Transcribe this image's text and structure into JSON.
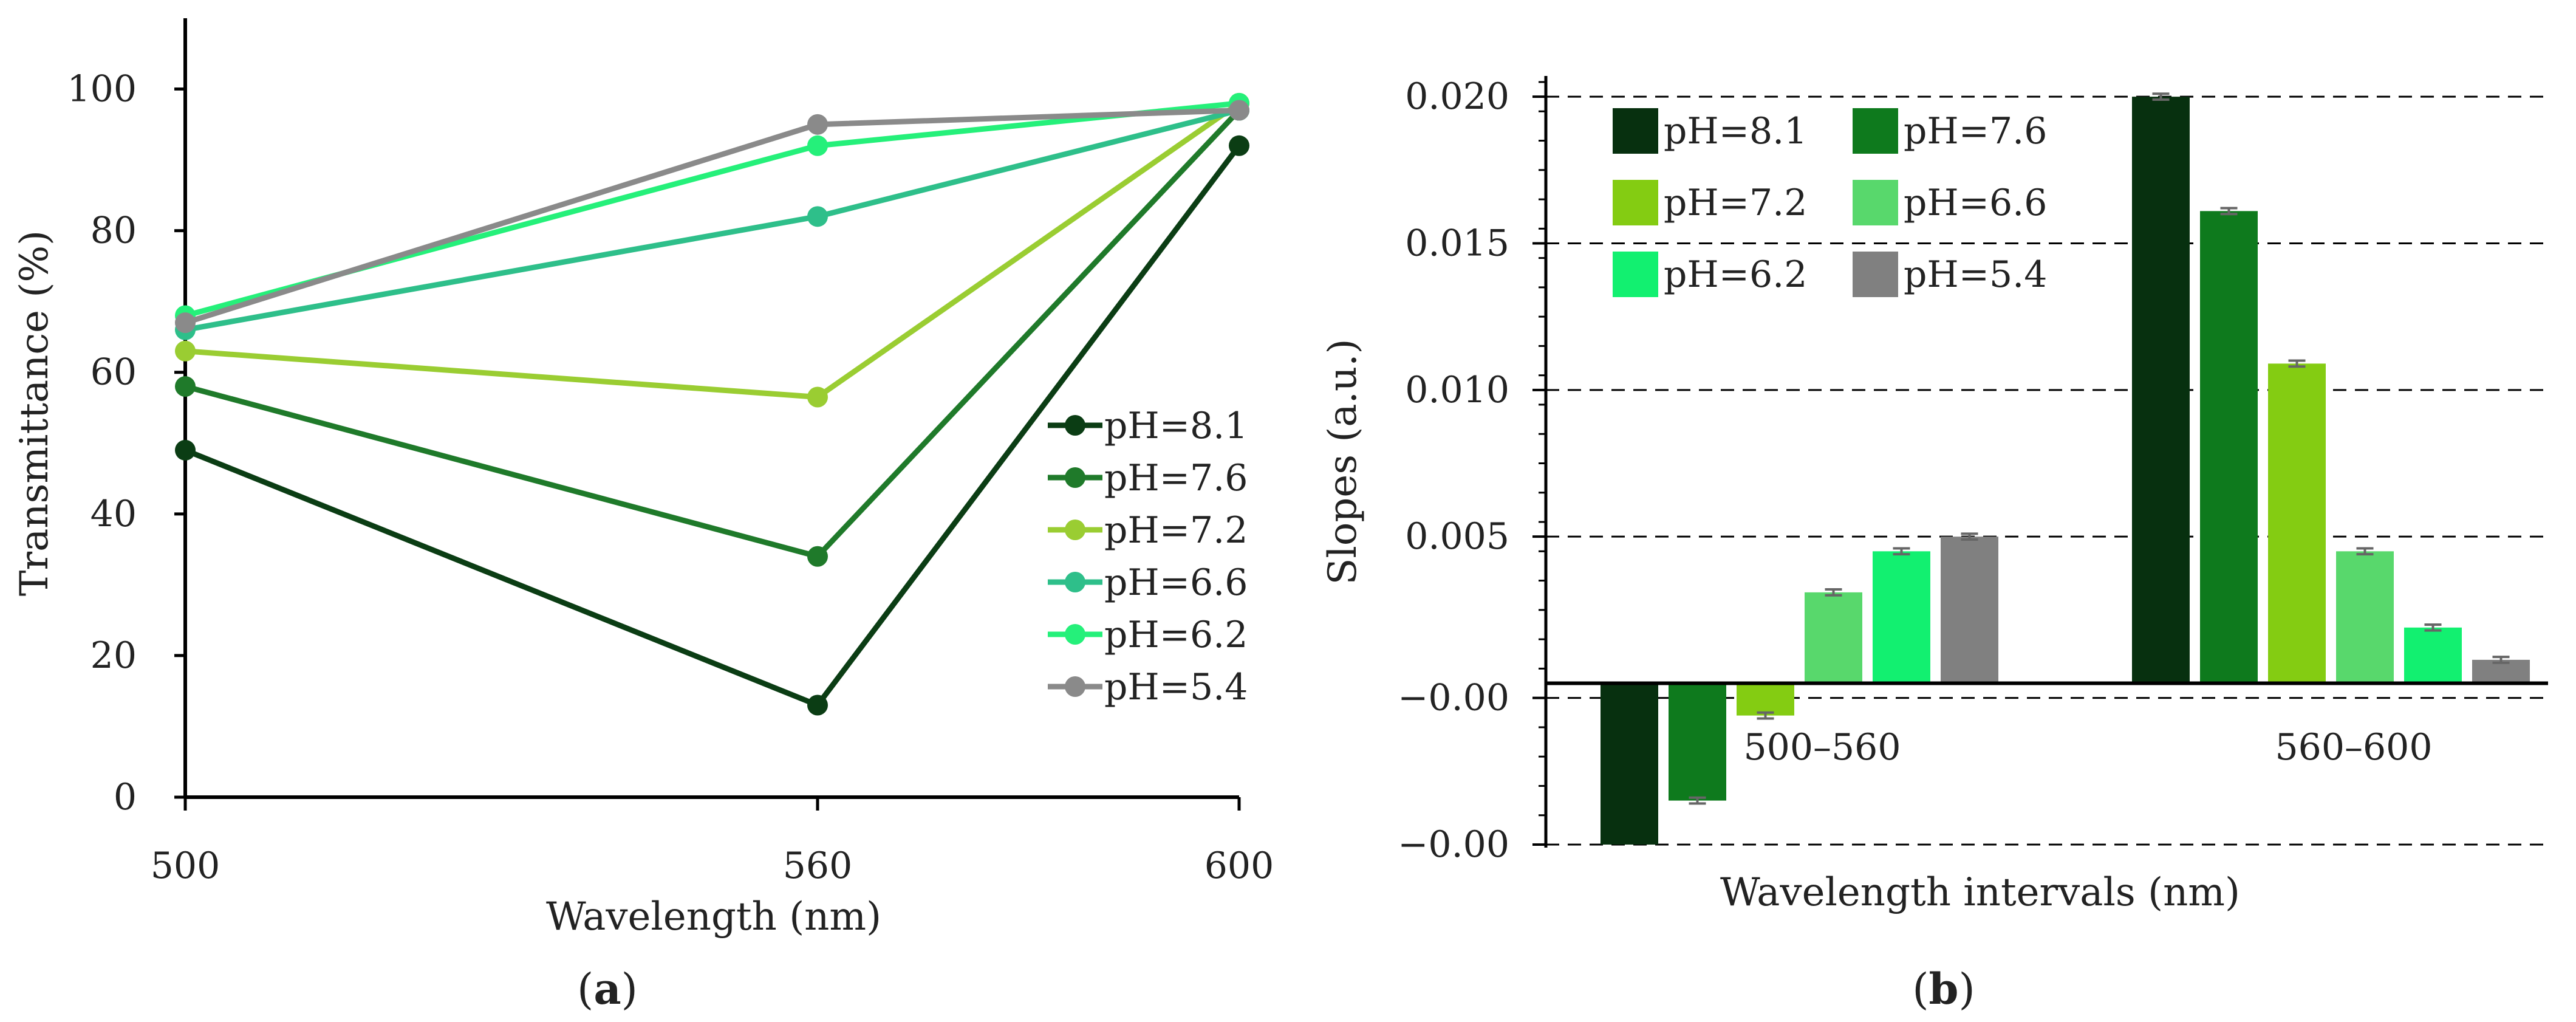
{
  "chart_data": [
    {
      "id": "a",
      "type": "line",
      "panel_label": "(a)",
      "panel_letter": "a",
      "xlabel": "Wavelength (nm)",
      "ylabel": "Transmittance (%)",
      "x": [
        500,
        560,
        600
      ],
      "x_tick_labels": [
        "500",
        "560",
        "600"
      ],
      "y_ticks": [
        0,
        20,
        40,
        60,
        80,
        100
      ],
      "y_tick_labels": [
        "0",
        "20",
        "40",
        "60",
        "80",
        "100"
      ],
      "ylim": [
        0,
        110
      ],
      "grid": false,
      "legend_position": "right",
      "series": [
        {
          "name": "pH=8.1",
          "color": "#0b3d14",
          "values": [
            49,
            13,
            92
          ]
        },
        {
          "name": "pH=7.6",
          "color": "#1f7a2a",
          "values": [
            58,
            34,
            97
          ]
        },
        {
          "name": "pH=7.2",
          "color": "#9acd32",
          "values": [
            63,
            56.5,
            98
          ]
        },
        {
          "name": "pH=6.6",
          "color": "#2ebf8a",
          "values": [
            66,
            82,
            97
          ]
        },
        {
          "name": "pH=6.2",
          "color": "#25f07a",
          "values": [
            68,
            92,
            98
          ]
        },
        {
          "name": "pH=5.4",
          "color": "#8a8a8a",
          "values": [
            67,
            95,
            97
          ]
        }
      ]
    },
    {
      "id": "b",
      "type": "bar",
      "panel_label": "(b)",
      "panel_letter": "b",
      "xlabel": "Wavelength intervals (nm)",
      "ylabel": "Slopes (a.u.)",
      "categories": [
        "500–560",
        "560–600"
      ],
      "y_ticks": [
        -0.0055,
        -0.0005,
        0.005,
        0.01,
        0.015,
        0.02
      ],
      "y_tick_labels": [
        "−0.00",
        "−0.00",
        "0.005",
        "0.010",
        "0.015",
        "0.020"
      ],
      "ylim": [
        -0.0055,
        0.0205
      ],
      "grid": true,
      "legend_position": "top-left",
      "error_bar": 0.0001,
      "series": [
        {
          "name": "pH=8.1",
          "color": "#07300f",
          "values": [
            -0.0058,
            0.02
          ]
        },
        {
          "name": "pH=7.6",
          "color": "#0e7a1d",
          "values": [
            -0.004,
            0.0161
          ]
        },
        {
          "name": "pH=7.2",
          "color": "#84cc12",
          "values": [
            -0.0011,
            0.0109
          ]
        },
        {
          "name": "pH=6.6",
          "color": "#58d86c",
          "values": [
            0.0031,
            0.0045
          ]
        },
        {
          "name": "pH=6.2",
          "color": "#12f070",
          "values": [
            0.0045,
            0.0019
          ]
        },
        {
          "name": "pH=5.4",
          "color": "#808080",
          "values": [
            0.005,
            0.0008
          ]
        }
      ]
    }
  ]
}
